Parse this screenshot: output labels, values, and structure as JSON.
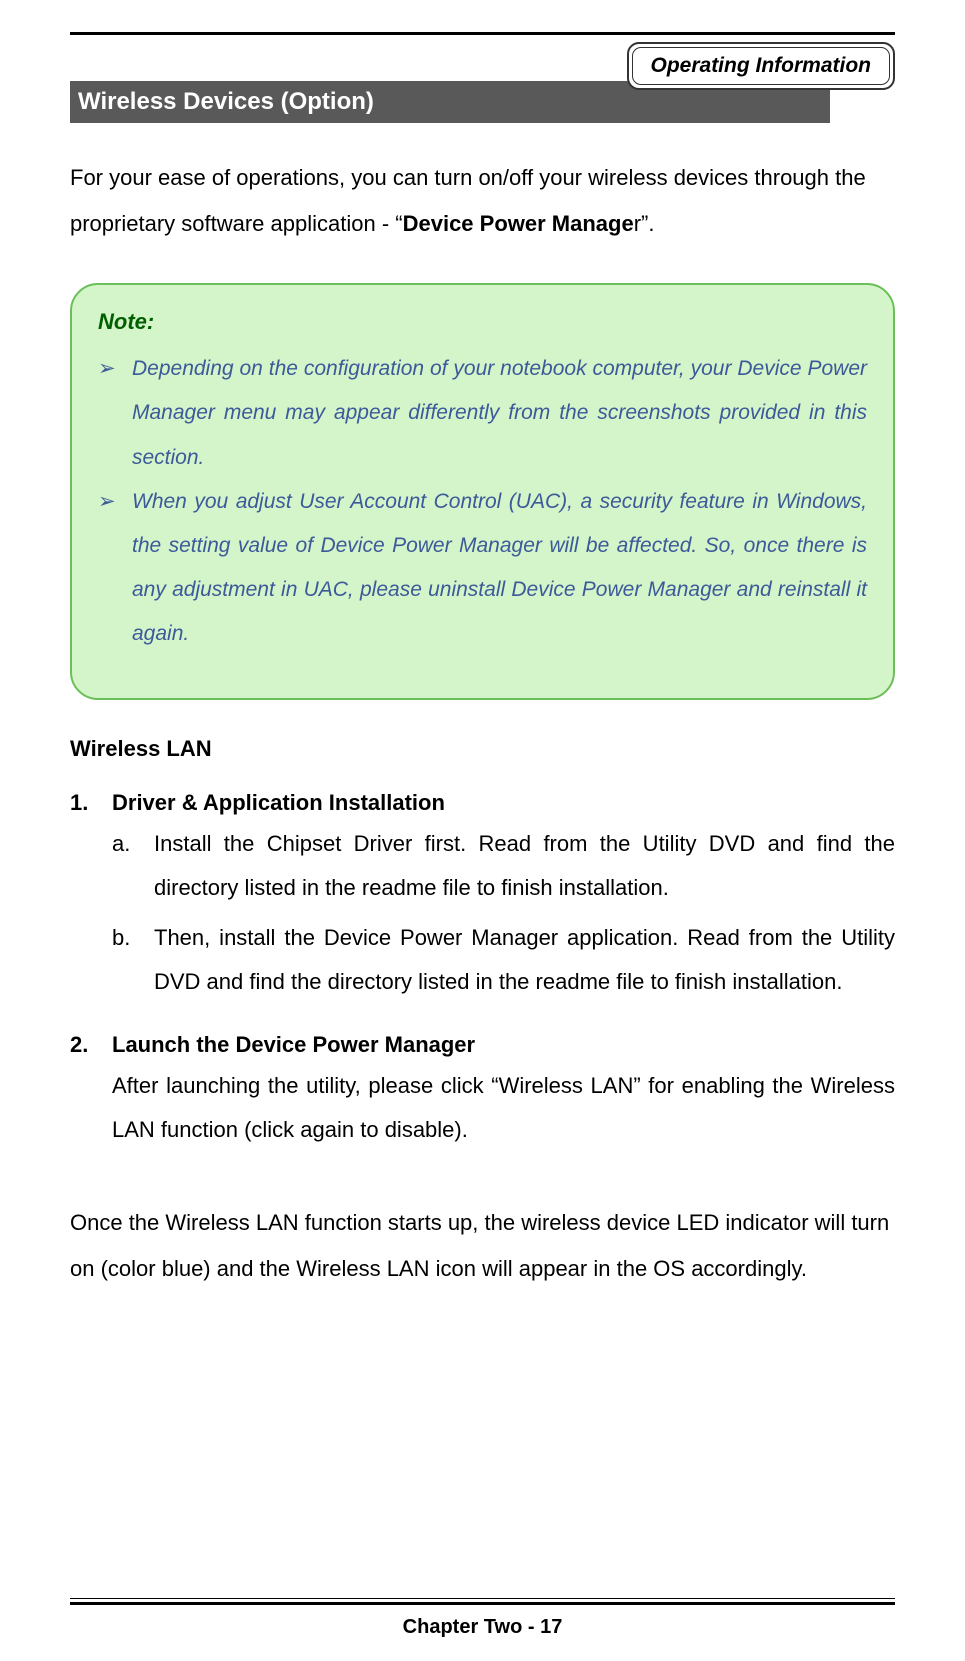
{
  "header": {
    "label": "Operating Information"
  },
  "sectionHeader": " Wireless Devices (Option)",
  "intro": {
    "pre": "For your ease of operations, you can turn on/off your wireless devices through the proprietary software application - “",
    "bold": "Device Power Manage",
    "post": "r”."
  },
  "note": {
    "title": "Note:",
    "bullet": "➢",
    "items": [
      "Depending on the configuration of your notebook computer, your Device Power Manager menu may appear differently from the screenshots provided in this section.",
      "When you adjust User Account Control (UAC), a security feature in Windows, the setting value of Device Power Manager will be affected. So, once there is any adjustment in UAC, please uninstall Device Power Manager and reinstall it again."
    ]
  },
  "subsectionTitle": "Wireless LAN",
  "step1": {
    "num": "1.",
    "title": "Driver & Application Installation",
    "a": {
      "letter": "a.",
      "text": "Install the Chipset Driver first. Read from the Utility DVD and find the directory listed in the readme file to finish installation."
    },
    "b": {
      "letter": "b.",
      "text": "Then, install the Device Power Manager application. Read from the Utility DVD and find the directory listed in the readme file to finish installation."
    }
  },
  "step2": {
    "num": "2.",
    "title": "Launch the Device Power Manager",
    "body": "After launching the utility, please click “Wireless LAN” for enabling the Wireless LAN function (click again to disable)."
  },
  "closingPara": "Once the Wireless LAN function starts up, the wireless device LED indicator will turn on (color blue) and the Wireless LAN icon will appear in the OS accordingly.",
  "footer": "Chapter Two - 17",
  "colors": {
    "sectionHeaderBg": "#595959",
    "noteBg": "#d4f4c9",
    "noteBorder": "#6bbf59",
    "noteTitleColor": "#006000",
    "noteTextColor": "#3c5a9a"
  }
}
